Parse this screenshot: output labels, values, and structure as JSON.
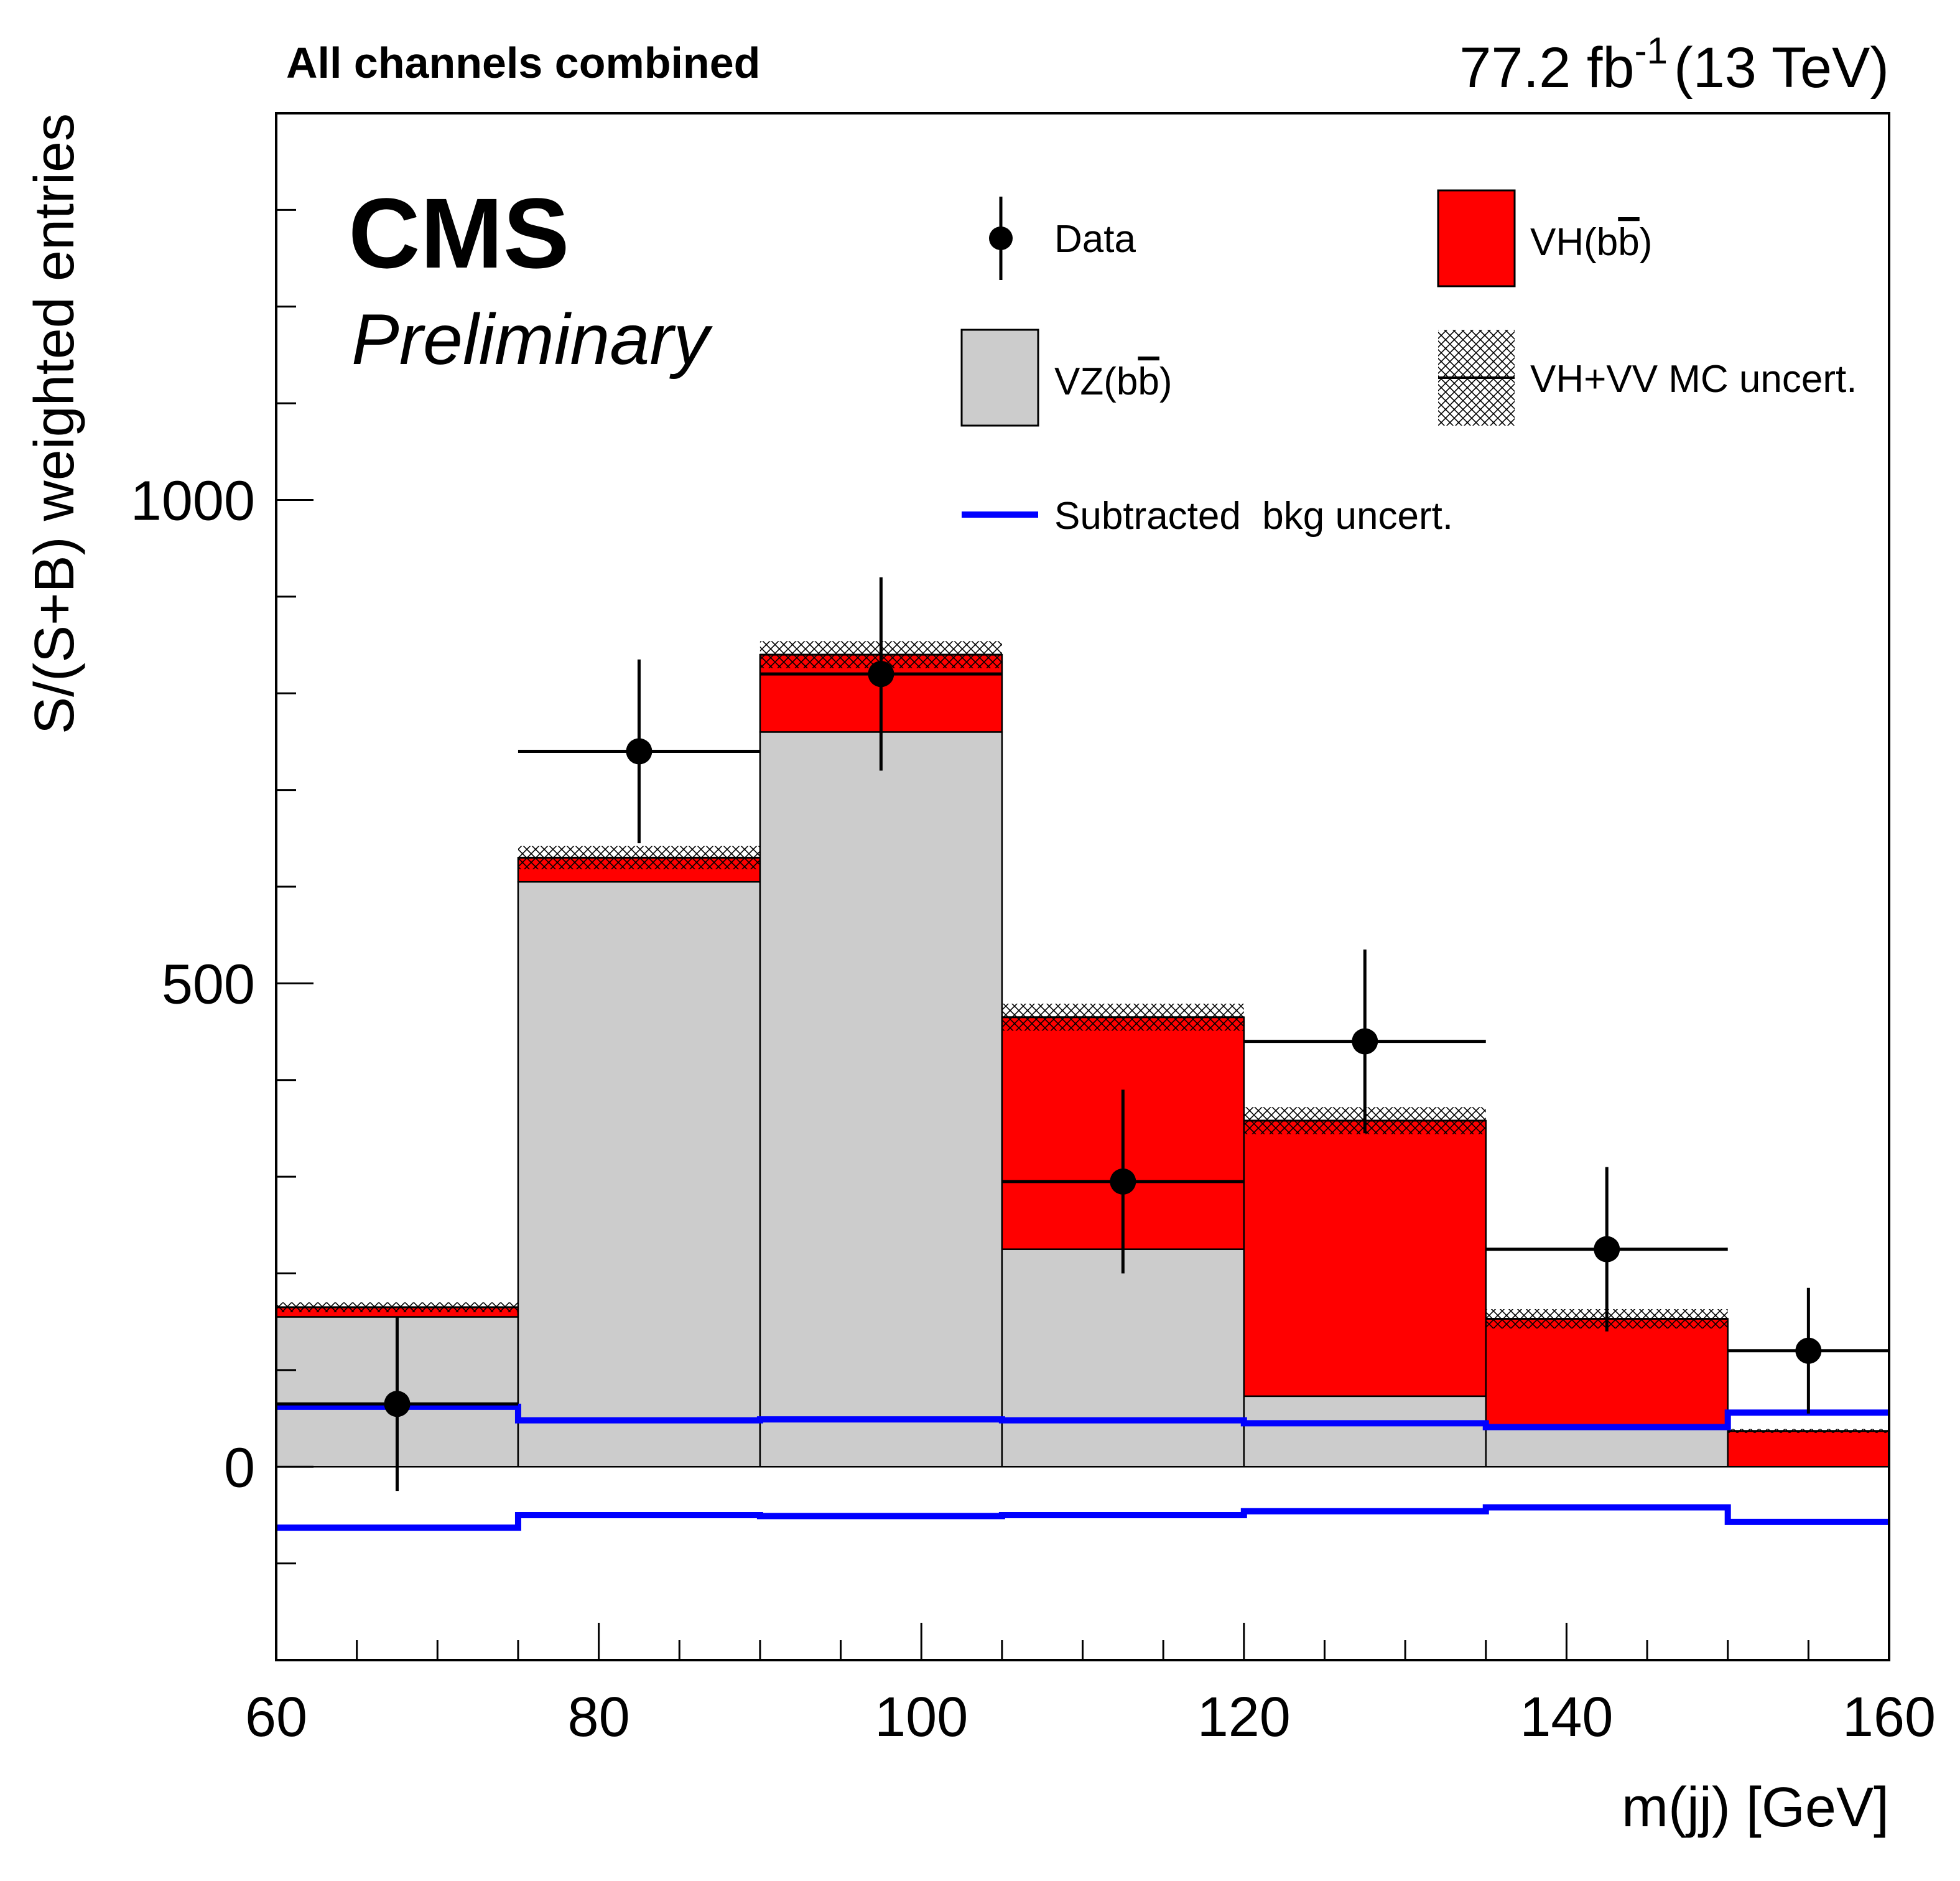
{
  "chart_data": {
    "type": "bar",
    "subtitle_left": "All channels combined",
    "lumi": {
      "value": "77.2",
      "unit": "fb",
      "exponent": "-1",
      "energy": "(13 TeV)"
    },
    "experiment": "CMS",
    "status": "Preliminary",
    "xlabel": "m(jj) [GeV]",
    "ylabel": "S/(S+B) weighted entries",
    "xlim": [
      60,
      160
    ],
    "ylim": [
      -200,
      1400
    ],
    "xticks": [
      60,
      80,
      100,
      120,
      140,
      160
    ],
    "yticks": [
      0,
      500,
      1000
    ],
    "bin_edges": [
      60,
      75,
      90,
      105,
      120,
      135,
      150,
      160
    ],
    "series": [
      {
        "name": "VZ(bb̄)",
        "color": "#cccccc",
        "values": [
          155,
          605,
          760,
          225,
          73,
          43,
          0
        ]
      },
      {
        "name": "VH(bb̄)",
        "color": "#ff0000",
        "values": [
          10,
          25,
          80,
          240,
          285,
          110,
          37
        ]
      },
      {
        "name": "VH+VV MC uncert.",
        "color": "#000000",
        "uncertainty": [
          5,
          12,
          14,
          14,
          14,
          10,
          2
        ]
      },
      {
        "name": "Subtracted  bkg uncert.",
        "color": "#0000ff",
        "upper": [
          62,
          48,
          49,
          48,
          45,
          41,
          56
        ],
        "lower": [
          -63,
          -50,
          -51,
          -50,
          -46,
          -42,
          -57
        ]
      }
    ],
    "data": {
      "name": "Data",
      "x": [
        67.5,
        82.5,
        97.5,
        112.5,
        127.5,
        142.5,
        155
      ],
      "y": [
        65,
        740,
        820,
        295,
        440,
        225,
        120
      ],
      "xerr": [
        7.5,
        7.5,
        7.5,
        7.5,
        7.5,
        7.5,
        5
      ],
      "yerr": [
        90,
        95,
        100,
        95,
        95,
        85,
        65
      ]
    },
    "legend": [
      {
        "label": "Data",
        "kind": "marker"
      },
      {
        "label": "VH(b",
        "bar": "b",
        "close": ")",
        "kind": "red"
      },
      {
        "label": "VZ(b",
        "bar": "b",
        "close": ")",
        "kind": "gray"
      },
      {
        "label": "VH+VV MC uncert.",
        "kind": "hatch"
      },
      {
        "label": "Subtracted  bkg uncert.",
        "kind": "blue"
      }
    ]
  }
}
